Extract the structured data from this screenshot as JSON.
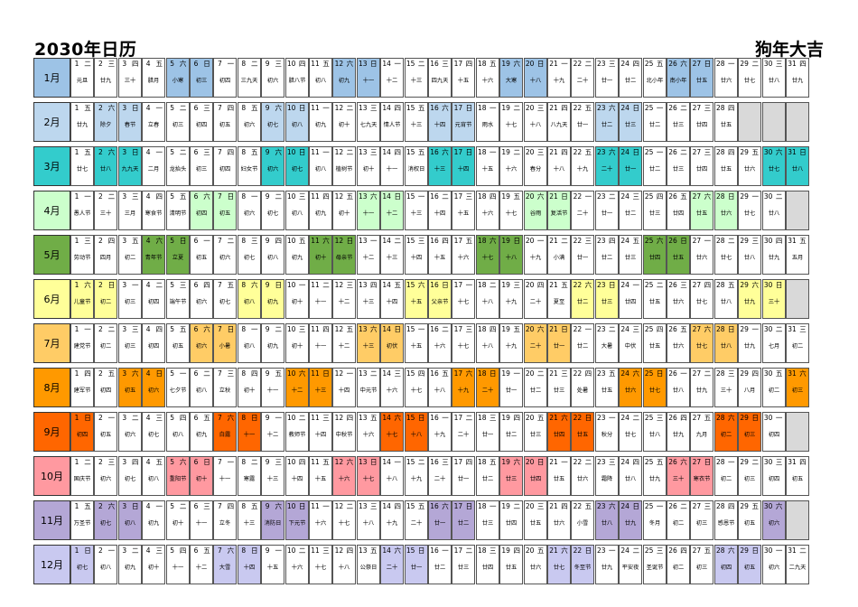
{
  "title": "2030年日历",
  "slogan": "狗年大吉",
  "months": [
    {
      "label": "1月",
      "color": "#9dc3e6",
      "startWeekday": 2,
      "lunar": [
        "元旦",
        "廿九",
        "三十",
        "腊月",
        "小寒",
        "初三",
        "初四",
        "三九天",
        "初六",
        "腊八节",
        "初八",
        "初九",
        "十一",
        "十二",
        "十三",
        "四九天",
        "十五",
        "十六",
        "大寒",
        "十八",
        "十九",
        "二十",
        "廿一",
        "廿二",
        "北小年",
        "南小年",
        "廿五",
        "廿六",
        "廿七",
        "廿八",
        "廿九"
      ]
    },
    {
      "label": "2月",
      "color": "#bdd7ee",
      "startWeekday": 5,
      "lunar": [
        "廿九",
        "除夕",
        "春节",
        "立春",
        "初三",
        "初四",
        "初五",
        "初六",
        "初七",
        "初八",
        "初九",
        "初十",
        "七九天",
        "情人节",
        "十三",
        "十四",
        "元宵节",
        "雨水",
        "十七",
        "十八",
        "八九天",
        "廿一",
        "廿二",
        "廿三",
        "廿二",
        "廿三",
        "廿四",
        "廿五"
      ]
    },
    {
      "label": "3月",
      "color": "#33cccc",
      "startWeekday": 5,
      "lunar": [
        "廿七",
        "廿八",
        "九九天",
        "二月",
        "龙抬头",
        "初三",
        "初四",
        "妇女节",
        "初六",
        "初七",
        "初八",
        "植树节",
        "初十",
        "十一",
        "消权日",
        "十三",
        "十四",
        "十五",
        "十六",
        "春分",
        "十八",
        "十九",
        "二十",
        "廿一",
        "廿二",
        "廿三",
        "廿四",
        "廿五",
        "廿六",
        "廿七",
        "廿八"
      ]
    },
    {
      "label": "4月",
      "color": "#ccffcc",
      "startWeekday": 1,
      "lunar": [
        "愚人节",
        "三十",
        "三月",
        "寒食节",
        "清明节",
        "初四",
        "初五",
        "初六",
        "初七",
        "初八",
        "初九",
        "初十",
        "十一",
        "十二",
        "十三",
        "十四",
        "十五",
        "十六",
        "十七",
        "谷雨",
        "复活节",
        "二十",
        "廿一",
        "廿二",
        "廿三",
        "廿四",
        "廿五",
        "廿六",
        "廿七",
        "廿八"
      ]
    },
    {
      "label": "5月",
      "color": "#70ad47",
      "startWeekday": 3,
      "lunar": [
        "劳动节",
        "四月",
        "初二",
        "青年节",
        "立夏",
        "初五",
        "初六",
        "初七",
        "初八",
        "初九",
        "初十",
        "母亲节",
        "十二",
        "十三",
        "十四",
        "十五",
        "十六",
        "十七",
        "十八",
        "十九",
        "小满",
        "廿一",
        "廿二",
        "廿三",
        "廿四",
        "廿五",
        "廿六",
        "廿七",
        "廿八",
        "廿九",
        "五月"
      ]
    },
    {
      "label": "6月",
      "color": "#ffff99",
      "startWeekday": 6,
      "lunar": [
        "儿童节",
        "初二",
        "初三",
        "初四",
        "端午节",
        "初六",
        "初七",
        "初八",
        "初九",
        "初十",
        "十一",
        "十二",
        "十三",
        "十四",
        "十五",
        "父亲节",
        "十七",
        "十八",
        "十九",
        "二十",
        "夏至",
        "廿二",
        "廿三",
        "廿四",
        "廿五",
        "廿六",
        "廿七",
        "廿八",
        "廿九",
        "三十"
      ]
    },
    {
      "label": "7月",
      "color": "#ffcc66",
      "startWeekday": 1,
      "lunar": [
        "建党节",
        "初二",
        "初三",
        "初四",
        "初五",
        "初六",
        "小暑",
        "初八",
        "初九",
        "初十",
        "十一",
        "十二",
        "十三",
        "初伏",
        "十五",
        "十六",
        "十七",
        "十八",
        "十九",
        "二十",
        "廿一",
        "廿二",
        "大暑",
        "中伏",
        "廿五",
        "廿六",
        "廿七",
        "廿八",
        "廿九",
        "七月",
        "初二"
      ]
    },
    {
      "label": "8月",
      "color": "#ff9900",
      "startWeekday": 4,
      "lunar": [
        "建军节",
        "初四",
        "初五",
        "初六",
        "七夕节",
        "初八",
        "立秋",
        "初十",
        "十一",
        "十二",
        "十三",
        "十四",
        "中元节",
        "十六",
        "十七",
        "十八",
        "十九",
        "二十",
        "廿一",
        "廿二",
        "廿三",
        "处暑",
        "廿五",
        "廿六",
        "廿七",
        "廿八",
        "廿九",
        "三十",
        "八月",
        "初二",
        "初三"
      ]
    },
    {
      "label": "9月",
      "color": "#ff6600",
      "startWeekday": 7,
      "lunar": [
        "初四",
        "初五",
        "初六",
        "初七",
        "初八",
        "初九",
        "白露",
        "十一",
        "十二",
        "教师节",
        "十四",
        "中秋节",
        "十六",
        "十七",
        "十八",
        "十九",
        "二十",
        "廿一",
        "廿二",
        "廿三",
        "廿四",
        "廿五",
        "秋分",
        "廿七",
        "廿八",
        "廿九",
        "九月",
        "初二",
        "初三",
        "初四"
      ]
    },
    {
      "label": "10月",
      "color": "#ff99a0",
      "startWeekday": 2,
      "lunar": [
        "国庆节",
        "初六",
        "初七",
        "初八",
        "重阳节",
        "初十",
        "十一",
        "寒露",
        "十三",
        "十四",
        "十五",
        "十六",
        "十七",
        "十八",
        "十九",
        "二十",
        "廿一",
        "廿二",
        "廿三",
        "廿四",
        "廿五",
        "廿六",
        "霜降",
        "廿八",
        "廿九",
        "三十",
        "寒衣节",
        "初二",
        "初三",
        "初四",
        "初五"
      ]
    },
    {
      "label": "11月",
      "color": "#b4a7d6",
      "startWeekday": 5,
      "lunar": [
        "万圣节",
        "初七",
        "初八",
        "初九",
        "初十",
        "十一",
        "立冬",
        "十三",
        "消防日",
        "下元节",
        "十六",
        "十七",
        "十八",
        "十九",
        "二十",
        "廿一",
        "廿二",
        "廿三",
        "廿四",
        "廿五",
        "廿六",
        "小雪",
        "廿八",
        "廿九",
        "冬月",
        "初二",
        "初三",
        "感恩节",
        "初五",
        "初六"
      ]
    },
    {
      "label": "12月",
      "color": "#c9c9f0",
      "startWeekday": 7,
      "lunar": [
        "初七",
        "初八",
        "初九",
        "初十",
        "十一",
        "十二",
        "大雪",
        "十四",
        "十五",
        "十六",
        "十七",
        "十八",
        "公祭日",
        "二十",
        "廿一",
        "廿二",
        "廿三",
        "廿四",
        "廿五",
        "廿六",
        "廿七",
        "冬至节",
        "廿九",
        "平安夜",
        "圣诞节",
        "初二",
        "初三",
        "初四",
        "初五",
        "初六",
        "二九天"
      ]
    }
  ],
  "weekday_chars": [
    "一",
    "二",
    "三",
    "四",
    "五",
    "六",
    "日"
  ],
  "empty_color": "#d9d9d9"
}
